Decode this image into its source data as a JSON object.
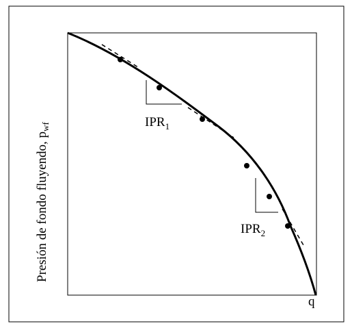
{
  "diagram": {
    "y_axis_label": "Presión de fondo fluyendo, p",
    "y_axis_label_subscript": "wf",
    "x_axis_label": "q",
    "ipr1_label": "IPR",
    "ipr1_subscript": "1",
    "ipr2_label": "IPR",
    "ipr2_subscript": "2",
    "curve_color": "#000000",
    "frame_color": "#000000",
    "background_color": "#ffffff",
    "curve_description": "IPR curve (pressure vs rate) with solid line, dashed tangent segments, data dots and two slope triangles"
  }
}
